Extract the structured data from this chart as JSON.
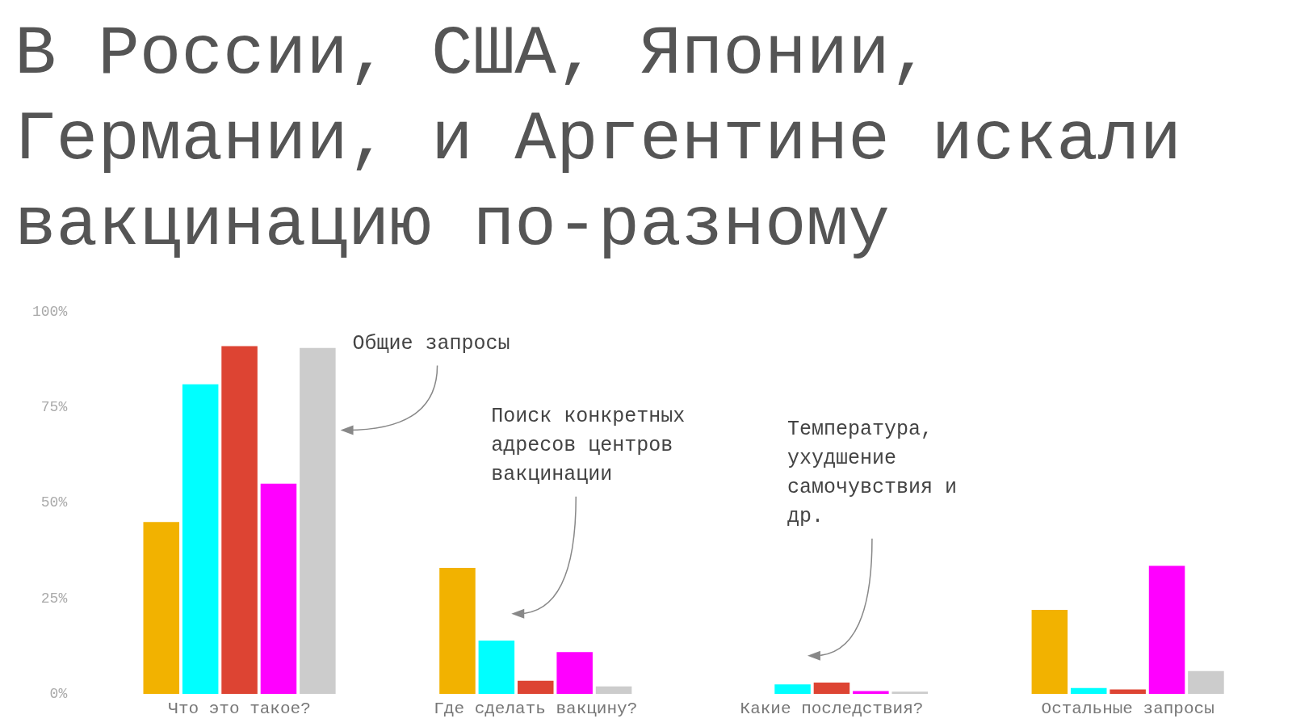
{
  "chart_data": {
    "type": "bar",
    "title": "В России, США, Японии, Германии, и Аргентине искали вакцинацию по-разному",
    "categories": [
      "Что это такое?",
      "Где сделать вакцину?",
      "Какие последствия?",
      "Остальные запросы"
    ],
    "series": [
      {
        "color": "#f2b200",
        "values": [
          45,
          33,
          0,
          22
        ]
      },
      {
        "color": "#00ffff",
        "values": [
          81,
          14,
          2.5,
          1.6
        ]
      },
      {
        "color": "#dd4433",
        "values": [
          91,
          3.5,
          3,
          1.2
        ]
      },
      {
        "color": "#ff00ff",
        "values": [
          55,
          11,
          0.8,
          33.5
        ]
      },
      {
        "color": "#cccccc",
        "values": [
          90.5,
          2,
          0.6,
          6
        ]
      }
    ],
    "ylim": [
      0,
      100
    ],
    "yticks": [
      {
        "value": 0,
        "label": "0%"
      },
      {
        "value": 25,
        "label": "25%"
      },
      {
        "value": 50,
        "label": "50%"
      },
      {
        "value": 75,
        "label": "75%"
      },
      {
        "value": 100,
        "label": "100%"
      }
    ],
    "grid": false,
    "annotations": [
      "Общие запросы",
      "Поиск конкретных адресов центров вакцинации",
      "Температура, ухудшение самочувствия и др."
    ]
  }
}
